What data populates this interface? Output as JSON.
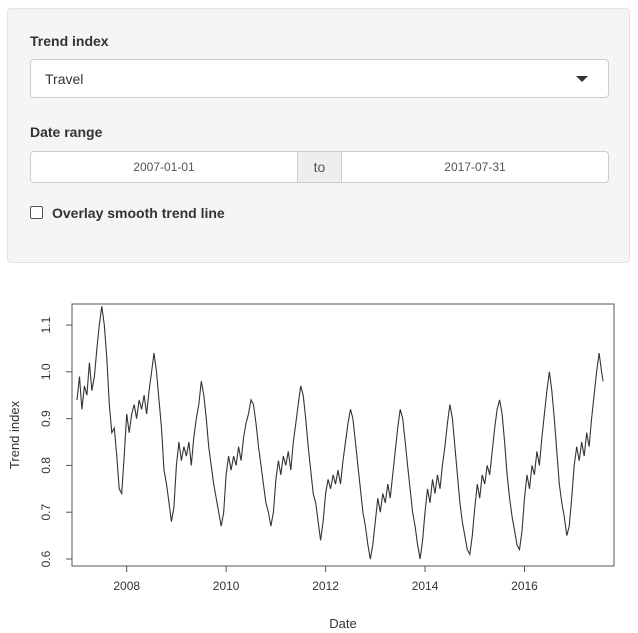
{
  "sidebar": {
    "trend_label": "Trend index",
    "trend_selected": "Travel",
    "date_label": "Date range",
    "date_start": "2007-01-01",
    "date_sep": "to",
    "date_end": "2017-07-31",
    "overlay_label": "Overlay smooth trend line",
    "overlay_checked": false
  },
  "chart_data": {
    "type": "line",
    "title": "",
    "xlabel": "Date",
    "ylabel": "Trend index",
    "xlim": [
      2006.9,
      2017.8
    ],
    "ylim": [
      0.585,
      1.145
    ],
    "x_ticks": [
      "2008",
      "2010",
      "2012",
      "2014",
      "2016"
    ],
    "y_ticks": [
      "0.6",
      "0.7",
      "0.8",
      "0.9",
      "1.0",
      "1.1"
    ],
    "grid": false,
    "series": [
      {
        "name": "",
        "color": "#333333",
        "points": [
          [
            2007.0,
            0.94
          ],
          [
            2007.05,
            0.99
          ],
          [
            2007.1,
            0.92
          ],
          [
            2007.15,
            0.97
          ],
          [
            2007.2,
            0.95
          ],
          [
            2007.25,
            1.02
          ],
          [
            2007.3,
            0.96
          ],
          [
            2007.35,
            0.99
          ],
          [
            2007.4,
            1.05
          ],
          [
            2007.45,
            1.1
          ],
          [
            2007.5,
            1.14
          ],
          [
            2007.55,
            1.1
          ],
          [
            2007.6,
            1.03
          ],
          [
            2007.65,
            0.93
          ],
          [
            2007.7,
            0.87
          ],
          [
            2007.75,
            0.88
          ],
          [
            2007.8,
            0.82
          ],
          [
            2007.85,
            0.75
          ],
          [
            2007.9,
            0.74
          ],
          [
            2007.95,
            0.82
          ],
          [
            2008.0,
            0.91
          ],
          [
            2008.05,
            0.87
          ],
          [
            2008.1,
            0.91
          ],
          [
            2008.15,
            0.93
          ],
          [
            2008.2,
            0.9
          ],
          [
            2008.25,
            0.94
          ],
          [
            2008.3,
            0.92
          ],
          [
            2008.35,
            0.95
          ],
          [
            2008.4,
            0.91
          ],
          [
            2008.45,
            0.96
          ],
          [
            2008.5,
            1.0
          ],
          [
            2008.55,
            1.04
          ],
          [
            2008.6,
            1.0
          ],
          [
            2008.65,
            0.94
          ],
          [
            2008.7,
            0.88
          ],
          [
            2008.75,
            0.79
          ],
          [
            2008.8,
            0.76
          ],
          [
            2008.85,
            0.72
          ],
          [
            2008.9,
            0.68
          ],
          [
            2008.95,
            0.71
          ],
          [
            2009.0,
            0.8
          ],
          [
            2009.05,
            0.85
          ],
          [
            2009.1,
            0.81
          ],
          [
            2009.15,
            0.84
          ],
          [
            2009.2,
            0.82
          ],
          [
            2009.25,
            0.85
          ],
          [
            2009.3,
            0.8
          ],
          [
            2009.35,
            0.86
          ],
          [
            2009.4,
            0.9
          ],
          [
            2009.45,
            0.93
          ],
          [
            2009.5,
            0.98
          ],
          [
            2009.55,
            0.95
          ],
          [
            2009.6,
            0.9
          ],
          [
            2009.65,
            0.84
          ],
          [
            2009.7,
            0.8
          ],
          [
            2009.75,
            0.76
          ],
          [
            2009.8,
            0.73
          ],
          [
            2009.85,
            0.7
          ],
          [
            2009.9,
            0.67
          ],
          [
            2009.95,
            0.7
          ],
          [
            2010.0,
            0.78
          ],
          [
            2010.05,
            0.82
          ],
          [
            2010.1,
            0.79
          ],
          [
            2010.15,
            0.82
          ],
          [
            2010.2,
            0.8
          ],
          [
            2010.25,
            0.84
          ],
          [
            2010.3,
            0.81
          ],
          [
            2010.35,
            0.86
          ],
          [
            2010.4,
            0.89
          ],
          [
            2010.45,
            0.91
          ],
          [
            2010.5,
            0.94
          ],
          [
            2010.55,
            0.93
          ],
          [
            2010.6,
            0.89
          ],
          [
            2010.65,
            0.84
          ],
          [
            2010.7,
            0.8
          ],
          [
            2010.75,
            0.76
          ],
          [
            2010.8,
            0.72
          ],
          [
            2010.85,
            0.7
          ],
          [
            2010.9,
            0.67
          ],
          [
            2010.95,
            0.7
          ],
          [
            2011.0,
            0.77
          ],
          [
            2011.05,
            0.81
          ],
          [
            2011.1,
            0.78
          ],
          [
            2011.15,
            0.82
          ],
          [
            2011.2,
            0.8
          ],
          [
            2011.25,
            0.83
          ],
          [
            2011.3,
            0.79
          ],
          [
            2011.35,
            0.85
          ],
          [
            2011.4,
            0.89
          ],
          [
            2011.45,
            0.93
          ],
          [
            2011.5,
            0.97
          ],
          [
            2011.55,
            0.95
          ],
          [
            2011.6,
            0.9
          ],
          [
            2011.65,
            0.84
          ],
          [
            2011.7,
            0.79
          ],
          [
            2011.75,
            0.74
          ],
          [
            2011.8,
            0.72
          ],
          [
            2011.85,
            0.68
          ],
          [
            2011.9,
            0.64
          ],
          [
            2011.95,
            0.68
          ],
          [
            2012.0,
            0.74
          ],
          [
            2012.05,
            0.77
          ],
          [
            2012.1,
            0.75
          ],
          [
            2012.15,
            0.78
          ],
          [
            2012.2,
            0.76
          ],
          [
            2012.25,
            0.79
          ],
          [
            2012.3,
            0.76
          ],
          [
            2012.35,
            0.81
          ],
          [
            2012.4,
            0.85
          ],
          [
            2012.45,
            0.89
          ],
          [
            2012.5,
            0.92
          ],
          [
            2012.55,
            0.9
          ],
          [
            2012.6,
            0.85
          ],
          [
            2012.65,
            0.8
          ],
          [
            2012.7,
            0.75
          ],
          [
            2012.75,
            0.7
          ],
          [
            2012.8,
            0.67
          ],
          [
            2012.85,
            0.63
          ],
          [
            2012.9,
            0.6
          ],
          [
            2012.95,
            0.63
          ],
          [
            2013.0,
            0.68
          ],
          [
            2013.05,
            0.73
          ],
          [
            2013.1,
            0.7
          ],
          [
            2013.15,
            0.74
          ],
          [
            2013.2,
            0.72
          ],
          [
            2013.25,
            0.76
          ],
          [
            2013.3,
            0.73
          ],
          [
            2013.35,
            0.78
          ],
          [
            2013.4,
            0.83
          ],
          [
            2013.45,
            0.88
          ],
          [
            2013.5,
            0.92
          ],
          [
            2013.55,
            0.9
          ],
          [
            2013.6,
            0.85
          ],
          [
            2013.65,
            0.8
          ],
          [
            2013.7,
            0.75
          ],
          [
            2013.75,
            0.7
          ],
          [
            2013.8,
            0.67
          ],
          [
            2013.85,
            0.63
          ],
          [
            2013.9,
            0.6
          ],
          [
            2013.95,
            0.64
          ],
          [
            2014.0,
            0.7
          ],
          [
            2014.05,
            0.75
          ],
          [
            2014.1,
            0.72
          ],
          [
            2014.15,
            0.77
          ],
          [
            2014.2,
            0.74
          ],
          [
            2014.25,
            0.78
          ],
          [
            2014.3,
            0.75
          ],
          [
            2014.35,
            0.8
          ],
          [
            2014.4,
            0.84
          ],
          [
            2014.45,
            0.89
          ],
          [
            2014.5,
            0.93
          ],
          [
            2014.55,
            0.9
          ],
          [
            2014.6,
            0.84
          ],
          [
            2014.65,
            0.78
          ],
          [
            2014.7,
            0.72
          ],
          [
            2014.75,
            0.68
          ],
          [
            2014.8,
            0.65
          ],
          [
            2014.85,
            0.62
          ],
          [
            2014.9,
            0.61
          ],
          [
            2014.95,
            0.65
          ],
          [
            2015.0,
            0.71
          ],
          [
            2015.05,
            0.76
          ],
          [
            2015.1,
            0.73
          ],
          [
            2015.15,
            0.78
          ],
          [
            2015.2,
            0.76
          ],
          [
            2015.25,
            0.8
          ],
          [
            2015.3,
            0.78
          ],
          [
            2015.35,
            0.83
          ],
          [
            2015.4,
            0.88
          ],
          [
            2015.45,
            0.92
          ],
          [
            2015.5,
            0.94
          ],
          [
            2015.55,
            0.91
          ],
          [
            2015.6,
            0.85
          ],
          [
            2015.65,
            0.78
          ],
          [
            2015.7,
            0.73
          ],
          [
            2015.75,
            0.69
          ],
          [
            2015.8,
            0.66
          ],
          [
            2015.85,
            0.63
          ],
          [
            2015.9,
            0.62
          ],
          [
            2015.95,
            0.66
          ],
          [
            2016.0,
            0.73
          ],
          [
            2016.05,
            0.78
          ],
          [
            2016.1,
            0.75
          ],
          [
            2016.15,
            0.8
          ],
          [
            2016.2,
            0.78
          ],
          [
            2016.25,
            0.83
          ],
          [
            2016.3,
            0.8
          ],
          [
            2016.35,
            0.86
          ],
          [
            2016.4,
            0.91
          ],
          [
            2016.45,
            0.96
          ],
          [
            2016.5,
            1.0
          ],
          [
            2016.55,
            0.96
          ],
          [
            2016.6,
            0.9
          ],
          [
            2016.65,
            0.83
          ],
          [
            2016.7,
            0.76
          ],
          [
            2016.75,
            0.72
          ],
          [
            2016.8,
            0.69
          ],
          [
            2016.85,
            0.65
          ],
          [
            2016.9,
            0.67
          ],
          [
            2016.95,
            0.73
          ],
          [
            2017.0,
            0.8
          ],
          [
            2017.05,
            0.84
          ],
          [
            2017.1,
            0.81
          ],
          [
            2017.15,
            0.85
          ],
          [
            2017.2,
            0.82
          ],
          [
            2017.25,
            0.87
          ],
          [
            2017.3,
            0.84
          ],
          [
            2017.35,
            0.9
          ],
          [
            2017.4,
            0.95
          ],
          [
            2017.45,
            1.0
          ],
          [
            2017.5,
            1.04
          ],
          [
            2017.55,
            1.0
          ],
          [
            2017.58,
            0.98
          ]
        ]
      }
    ]
  }
}
